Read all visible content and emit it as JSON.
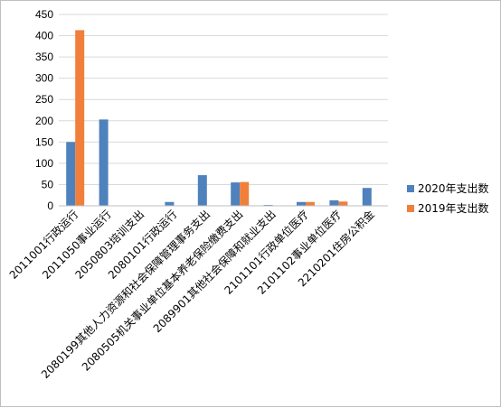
{
  "chart_data": {
    "type": "bar",
    "categories": [
      "2011001行政运行",
      "2011050事业运行",
      "2050803培训支出",
      "2080101行政运行",
      "2080199其他人力资源和社会保障管理事务支出",
      "2080505机关事业单位基本养老保险缴费支出",
      "2089901其他社会保障和就业支出",
      "2101101行政单位医疗",
      "2101102事业单位医疗",
      "2210201住房公积金"
    ],
    "series": [
      {
        "name": "2020年支出数",
        "color": "#4f81bd",
        "values": [
          150,
          203,
          0,
          9,
          72,
          55,
          2,
          9,
          13,
          42
        ]
      },
      {
        "name": "2019年支出数",
        "color": "#f07f3c",
        "values": [
          413,
          0,
          0,
          0,
          0,
          56,
          0,
          9,
          10,
          0
        ]
      }
    ],
    "yticks": [
      0,
      50,
      100,
      150,
      200,
      250,
      300,
      350,
      400,
      450
    ],
    "ylim": [
      0,
      450
    ],
    "grid": true,
    "legend": "right"
  }
}
